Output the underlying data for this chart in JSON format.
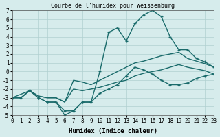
{
  "title": "Courbe de l'humidex pour Weissenburg",
  "xlabel": "Humidex (Indice chaleur)",
  "xlim": [
    0,
    23
  ],
  "ylim": [
    -5,
    7
  ],
  "yticks": [
    -5,
    -4,
    -3,
    -2,
    -1,
    0,
    1,
    2,
    3,
    4,
    5,
    6,
    7
  ],
  "xticks": [
    0,
    1,
    2,
    3,
    4,
    5,
    6,
    7,
    8,
    9,
    10,
    11,
    12,
    13,
    14,
    15,
    16,
    17,
    18,
    19,
    20,
    21,
    22,
    23
  ],
  "bg_color": "#d6ecec",
  "line_color": "#1a6b6b",
  "grid_color": "#b0d0d0",
  "line1_x": [
    0,
    1,
    2,
    3,
    4,
    5,
    6,
    7,
    8,
    9,
    10,
    11,
    12,
    13,
    14,
    15,
    16,
    17,
    18,
    19,
    20,
    21,
    22,
    23
  ],
  "line1_y": [
    -3.0,
    -3.0,
    -2.2,
    -3.0,
    -3.5,
    -3.5,
    -5.0,
    -4.5,
    -3.5,
    -3.5,
    -2.5,
    -2.0,
    -1.5,
    -0.5,
    0.5,
    0.2,
    -0.3,
    -1.0,
    -1.5,
    -1.5,
    -1.3,
    -0.8,
    -0.5,
    -0.3
  ],
  "line2_x": [
    0,
    2,
    3,
    4,
    5,
    6,
    7,
    8,
    9,
    10,
    11,
    12,
    13,
    14,
    15,
    16,
    17,
    18,
    19,
    20,
    21,
    22,
    23
  ],
  "line2_y": [
    -3.0,
    -2.2,
    -3.0,
    -3.5,
    -3.5,
    -4.5,
    -4.5,
    -3.5,
    -3.5,
    0.0,
    4.5,
    5.0,
    3.5,
    5.5,
    6.5,
    7.0,
    6.3,
    4.0,
    2.5,
    2.5,
    1.5,
    1.1,
    0.5
  ],
  "line3_x": [
    0,
    1,
    2,
    3,
    4,
    5,
    6,
    7,
    8,
    9,
    10,
    11,
    12,
    13,
    14,
    15,
    16,
    17,
    18,
    19,
    20,
    21,
    22,
    23
  ],
  "line3_y": [
    -3.0,
    -3.0,
    -2.2,
    -2.8,
    -3.0,
    -3.0,
    -3.5,
    -1.0,
    -1.2,
    -1.5,
    -1.0,
    -0.5,
    0.0,
    0.5,
    1.0,
    1.2,
    1.5,
    1.8,
    2.0,
    2.2,
    1.5,
    1.2,
    0.9,
    0.5
  ],
  "line4_x": [
    0,
    1,
    2,
    3,
    4,
    5,
    6,
    7,
    8,
    9,
    10,
    11,
    12,
    13,
    14,
    15,
    16,
    17,
    18,
    19,
    20,
    21,
    22,
    23
  ],
  "line4_y": [
    -3.0,
    -3.0,
    -2.2,
    -2.8,
    -3.0,
    -3.0,
    -3.5,
    -2.0,
    -2.2,
    -2.0,
    -1.8,
    -1.5,
    -1.2,
    -1.0,
    -0.5,
    -0.2,
    0.0,
    0.2,
    0.5,
    0.8,
    0.5,
    0.3,
    0.1,
    -0.3
  ]
}
